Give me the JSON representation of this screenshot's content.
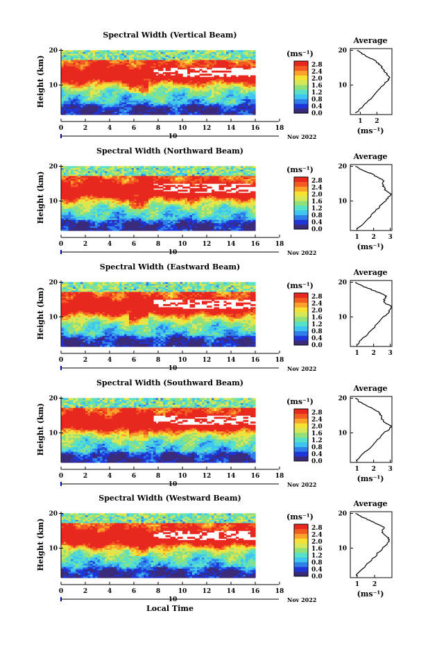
{
  "chart_data": [
    {
      "type": "heatmap",
      "title": "Spectral Width (Vertical Beam)",
      "ylabel": "Height (km)",
      "xticks": [
        "0",
        "2",
        "4",
        "6",
        "8",
        "10",
        "12",
        "14",
        "16",
        "18"
      ],
      "yticks": [
        "10",
        "20"
      ],
      "xlim": [
        0,
        18
      ],
      "ylim": [
        1.5,
        20.5
      ],
      "data_xmax": 16,
      "day_label": "10",
      "date_label": "Nov 2022",
      "colorbar": {
        "unit": "(ms⁻¹)",
        "ticks": [
          "0.0",
          "0.4",
          "0.8",
          "1.2",
          "1.6",
          "2.0",
          "2.4",
          "2.8"
        ],
        "range": [
          0,
          3.0
        ]
      },
      "average": {
        "title": "Average",
        "xlabel": "(ms⁻¹)",
        "xticks": [
          "1",
          "2"
        ],
        "xtick_values": [
          1,
          2
        ],
        "xlim": [
          0.4,
          2.9
        ],
        "yticks": [
          "10",
          "20"
        ],
        "profile": [
          [
            0.75,
            2
          ],
          [
            1.2,
            4
          ],
          [
            1.6,
            6
          ],
          [
            1.95,
            8
          ],
          [
            2.35,
            10
          ],
          [
            2.6,
            11
          ],
          [
            2.75,
            12
          ],
          [
            2.6,
            13
          ],
          [
            2.45,
            14
          ],
          [
            2.3,
            15
          ],
          [
            2.15,
            16
          ],
          [
            1.9,
            17
          ],
          [
            1.5,
            18
          ],
          [
            1.1,
            19
          ],
          [
            0.8,
            20
          ]
        ]
      }
    },
    {
      "type": "heatmap",
      "title": "Spectral Width (Northward Beam)",
      "ylabel": "Height (km)",
      "xticks": [
        "0",
        "2",
        "4",
        "6",
        "8",
        "10",
        "12",
        "14",
        "16",
        "18"
      ],
      "yticks": [
        "10",
        "20"
      ],
      "xlim": [
        0,
        18
      ],
      "ylim": [
        1.5,
        20.5
      ],
      "data_xmax": 16,
      "day_label": "10",
      "date_label": "Nov 2022",
      "colorbar": {
        "unit": "(ms⁻¹)",
        "ticks": [
          "0.0",
          "0.4",
          "0.8",
          "1.2",
          "1.6",
          "2.0",
          "2.4",
          "2.8"
        ],
        "range": [
          0,
          3.0
        ]
      },
      "average": {
        "title": "Average",
        "xlabel": "(ms⁻¹)",
        "xticks": [
          "1",
          "2",
          "3"
        ],
        "xtick_values": [
          1,
          2,
          3
        ],
        "xlim": [
          0.6,
          3.1
        ],
        "yticks": [
          "10",
          "20"
        ],
        "profile": [
          [
            1.0,
            2
          ],
          [
            1.5,
            4
          ],
          [
            1.9,
            6
          ],
          [
            2.3,
            8
          ],
          [
            2.7,
            10
          ],
          [
            2.9,
            11
          ],
          [
            3.05,
            12
          ],
          [
            2.75,
            13
          ],
          [
            2.6,
            14
          ],
          [
            2.5,
            15
          ],
          [
            2.6,
            16
          ],
          [
            2.2,
            17
          ],
          [
            1.8,
            18
          ],
          [
            1.3,
            19
          ],
          [
            0.9,
            20
          ]
        ]
      }
    },
    {
      "type": "heatmap",
      "title": "Spectral Width (Eastward Beam)",
      "ylabel": "Height (km)",
      "xticks": [
        "0",
        "2",
        "4",
        "6",
        "8",
        "10",
        "12",
        "14",
        "16",
        "18"
      ],
      "yticks": [
        "10",
        "20"
      ],
      "xlim": [
        0,
        18
      ],
      "ylim": [
        1.5,
        20.5
      ],
      "data_xmax": 16,
      "day_label": "10",
      "date_label": "Nov 2022",
      "colorbar": {
        "unit": "(ms⁻¹)",
        "ticks": [
          "0.0",
          "0.4",
          "0.8",
          "1.2",
          "1.6",
          "2.0",
          "2.4",
          "2.8"
        ],
        "range": [
          0,
          3.0
        ]
      },
      "average": {
        "title": "Average",
        "xlabel": "",
        "xticks": [
          "1",
          "2",
          "3"
        ],
        "xtick_values": [
          1,
          2,
          3
        ],
        "xlim": [
          0.6,
          3.1
        ],
        "yticks": [
          "10",
          "20"
        ],
        "profile": [
          [
            1.0,
            2
          ],
          [
            1.4,
            4
          ],
          [
            1.8,
            6
          ],
          [
            2.25,
            8
          ],
          [
            2.6,
            10
          ],
          [
            2.85,
            11
          ],
          [
            3.0,
            12
          ],
          [
            3.05,
            13
          ],
          [
            2.7,
            14
          ],
          [
            2.6,
            15
          ],
          [
            2.8,
            16
          ],
          [
            2.3,
            17
          ],
          [
            1.8,
            18
          ],
          [
            1.3,
            19
          ],
          [
            0.9,
            20
          ]
        ]
      }
    },
    {
      "type": "heatmap",
      "title": "Spectral Width (Southward Beam)",
      "ylabel": "Height (km)",
      "xticks": [
        "0",
        "2",
        "4",
        "6",
        "8",
        "10",
        "12",
        "14",
        "16",
        "18"
      ],
      "yticks": [
        "10",
        "20"
      ],
      "xlim": [
        0,
        18
      ],
      "ylim": [
        1.5,
        20.5
      ],
      "data_xmax": 16,
      "day_label": "10",
      "date_label": "Nov 2022",
      "colorbar": {
        "unit": "(ms⁻¹)",
        "ticks": [
          "0.0",
          "0.4",
          "0.8",
          "1.2",
          "1.6",
          "2.0",
          "2.4",
          "2.8"
        ],
        "range": [
          0,
          3.0
        ]
      },
      "average": {
        "title": "Average",
        "xlabel": "(ms⁻¹)",
        "xticks": [
          "1",
          "2",
          "3"
        ],
        "xtick_values": [
          1,
          2,
          3
        ],
        "xlim": [
          0.6,
          3.1
        ],
        "yticks": [
          "10",
          "20"
        ],
        "profile": [
          [
            1.0,
            2
          ],
          [
            1.4,
            4
          ],
          [
            1.85,
            6
          ],
          [
            2.25,
            8
          ],
          [
            2.6,
            10
          ],
          [
            2.9,
            11
          ],
          [
            3.05,
            12
          ],
          [
            2.65,
            13
          ],
          [
            2.5,
            14
          ],
          [
            2.45,
            15
          ],
          [
            2.3,
            16
          ],
          [
            1.95,
            17
          ],
          [
            1.5,
            18
          ],
          [
            1.15,
            19
          ],
          [
            0.9,
            20
          ]
        ]
      }
    },
    {
      "type": "heatmap",
      "title": "Spectral Width (Westward Beam)",
      "ylabel": "Height (km)",
      "xlabel": "Local Time",
      "xticks": [
        "0",
        "2",
        "4",
        "6",
        "8",
        "10",
        "12",
        "14",
        "16",
        "18"
      ],
      "yticks": [
        "10",
        "20"
      ],
      "xlim": [
        0,
        18
      ],
      "ylim": [
        1.5,
        20.5
      ],
      "data_xmax": 16,
      "day_label": "10",
      "date_label": "Nov 2022",
      "colorbar": {
        "unit": "(ms⁻¹)",
        "ticks": [
          "0.0",
          "0.4",
          "0.8",
          "1.2",
          "1.6",
          "2.0",
          "2.4",
          "2.8"
        ],
        "range": [
          0,
          3.0
        ]
      },
      "average": {
        "title": "Average",
        "xlabel": "(ms⁻¹)",
        "xticks": [
          "1",
          "2"
        ],
        "xtick_values": [
          1,
          2
        ],
        "xlim": [
          0.6,
          3.0
        ],
        "yticks": [
          "10",
          "20"
        ],
        "profile": [
          [
            0.9,
            2
          ],
          [
            1.3,
            4
          ],
          [
            1.7,
            6
          ],
          [
            2.1,
            8
          ],
          [
            2.45,
            10
          ],
          [
            2.7,
            11
          ],
          [
            2.85,
            12
          ],
          [
            2.75,
            13
          ],
          [
            2.5,
            14
          ],
          [
            2.4,
            15
          ],
          [
            2.55,
            16
          ],
          [
            2.15,
            17
          ],
          [
            1.7,
            18
          ],
          [
            1.25,
            19
          ],
          [
            0.9,
            20
          ]
        ]
      }
    }
  ],
  "colors": {
    "palette": [
      "#3b2a7a",
      "#1f35d6",
      "#2f7fe8",
      "#3fc5ef",
      "#59e0c8",
      "#92e07a",
      "#d6e85a",
      "#f6e234",
      "#f9a12a",
      "#f25c23",
      "#e8281e"
    ]
  }
}
